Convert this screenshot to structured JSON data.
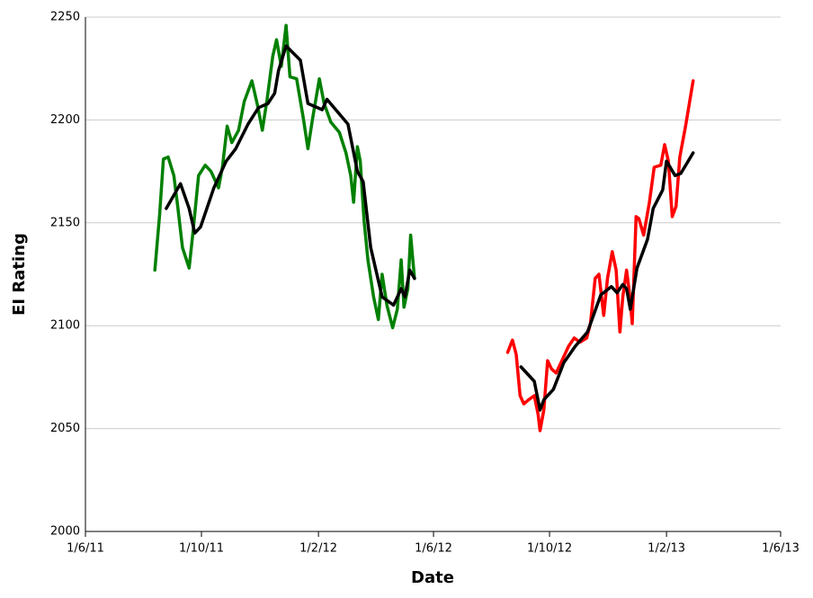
{
  "chart_data": {
    "type": "line",
    "x_label": "Date",
    "y_label": "EI Rating",
    "xlim": [
      "2011-06-01",
      "2013-06-01"
    ],
    "xticks": [
      {
        "value": "2011-06-01",
        "label": "1/6/11"
      },
      {
        "value": "2011-10-01",
        "label": "1/10/11"
      },
      {
        "value": "2012-02-01",
        "label": "1/2/12"
      },
      {
        "value": "2012-06-01",
        "label": "1/6/12"
      },
      {
        "value": "2012-10-01",
        "label": "1/10/12"
      },
      {
        "value": "2013-02-01",
        "label": "1/2/13"
      },
      {
        "value": "2013-06-01",
        "label": "1/6/13"
      }
    ],
    "ylim": [
      2000,
      2250
    ],
    "yticks": [
      2000,
      2050,
      2100,
      2150,
      2200,
      2250
    ],
    "grid": true,
    "series": [
      {
        "color": "#008000",
        "x": [
          "2011-08-13",
          "2011-08-18",
          "2011-08-22",
          "2011-08-27",
          "2011-09-02",
          "2011-09-06",
          "2011-09-11",
          "2011-09-18",
          "2011-09-22",
          "2011-09-28",
          "2011-10-05",
          "2011-10-11",
          "2011-10-19",
          "2011-10-23",
          "2011-10-28",
          "2011-11-02",
          "2011-11-09",
          "2011-11-15",
          "2011-11-23",
          "2011-11-29",
          "2011-12-04",
          "2011-12-09",
          "2011-12-15",
          "2011-12-19",
          "2011-12-24",
          "2011-12-29",
          "2012-01-02",
          "2012-01-09",
          "2012-01-16",
          "2012-01-21",
          "2012-01-26",
          "2012-02-02",
          "2012-02-07",
          "2012-02-14",
          "2012-02-23",
          "2012-03-01",
          "2012-03-06",
          "2012-03-09",
          "2012-03-13",
          "2012-03-16",
          "2012-03-20",
          "2012-03-24",
          "2012-03-30",
          "2012-04-04",
          "2012-04-08",
          "2012-04-13",
          "2012-04-19",
          "2012-04-24",
          "2012-04-28",
          "2012-05-01",
          "2012-05-05",
          "2012-05-08",
          "2012-05-12"
        ],
        "values": [
          2127,
          2154,
          2181,
          2182,
          2173,
          2158,
          2138,
          2128,
          2145,
          2173,
          2178,
          2175,
          2167,
          2177,
          2197,
          2189,
          2195,
          2209,
          2219,
          2207,
          2195,
          2210,
          2231,
          2239,
          2226,
          2246,
          2221,
          2220,
          2201,
          2186,
          2201,
          2220,
          2208,
          2199,
          2194,
          2184,
          2173,
          2160,
          2187,
          2180,
          2151,
          2132,
          2114,
          2103,
          2125,
          2110,
          2099,
          2108,
          2132,
          2109,
          2118,
          2144,
          2123
        ]
      },
      {
        "color": "#000000",
        "x": [
          "2011-08-25",
          "2011-09-09",
          "2011-09-18",
          "2011-09-24",
          "2011-09-30",
          "2011-10-14",
          "2011-10-27",
          "2011-11-06",
          "2011-11-19",
          "2011-11-30",
          "2011-12-10",
          "2011-12-17",
          "2011-12-21",
          "2011-12-29",
          "2012-01-13",
          "2012-01-21",
          "2012-02-05",
          "2012-02-10",
          "2012-03-03",
          "2012-03-13",
          "2012-03-19",
          "2012-03-27",
          "2012-04-08",
          "2012-04-20",
          "2012-04-28",
          "2012-05-02",
          "2012-05-07",
          "2012-05-12"
        ],
        "values": [
          2157,
          2169,
          2157,
          2145,
          2148,
          2167,
          2180,
          2186,
          2198,
          2206,
          2208,
          2213,
          2224,
          2236,
          2229,
          2208,
          2205,
          2210,
          2198,
          2175,
          2170,
          2138,
          2114,
          2110,
          2118,
          2114,
          2127,
          2123
        ]
      },
      {
        "color": "#ff0000",
        "x": [
          "2012-08-18",
          "2012-08-23",
          "2012-08-27",
          "2012-08-31",
          "2012-09-04",
          "2012-09-09",
          "2012-09-15",
          "2012-09-19",
          "2012-09-21",
          "2012-09-25",
          "2012-09-29",
          "2012-10-03",
          "2012-10-08",
          "2012-10-14",
          "2012-10-21",
          "2012-10-27",
          "2012-11-02",
          "2012-11-09",
          "2012-11-13",
          "2012-11-18",
          "2012-11-22",
          "2012-11-27",
          "2012-12-01",
          "2012-12-06",
          "2012-12-10",
          "2012-12-14",
          "2012-12-17",
          "2012-12-21",
          "2012-12-24",
          "2012-12-27",
          "2012-12-31",
          "2013-01-03",
          "2013-01-08",
          "2013-01-14",
          "2013-01-19",
          "2013-01-26",
          "2013-01-30",
          "2013-02-03",
          "2013-02-07",
          "2013-02-11",
          "2013-02-15",
          "2013-02-21",
          "2013-02-25",
          "2013-03-01"
        ],
        "values": [
          2087,
          2093,
          2086,
          2066,
          2062,
          2064,
          2066,
          2057,
          2049,
          2059,
          2083,
          2079,
          2077,
          2083,
          2090,
          2094,
          2092,
          2094,
          2101,
          2123,
          2125,
          2105,
          2123,
          2136,
          2127,
          2097,
          2114,
          2127,
          2116,
          2101,
          2153,
          2152,
          2144,
          2160,
          2177,
          2178,
          2188,
          2180,
          2153,
          2158,
          2182,
          2197,
          2208,
          2219
        ]
      },
      {
        "color": "#000000",
        "x": [
          "2012-09-01",
          "2012-09-15",
          "2012-09-21",
          "2012-09-25",
          "2012-10-05",
          "2012-10-16",
          "2012-10-28",
          "2012-11-10",
          "2012-11-24",
          "2012-12-05",
          "2012-12-11",
          "2012-12-17",
          "2012-12-21",
          "2012-12-25",
          "2013-01-01",
          "2013-01-12",
          "2013-01-18",
          "2013-01-28",
          "2013-02-01",
          "2013-02-10",
          "2013-02-16",
          "2013-03-01"
        ],
        "values": [
          2080,
          2073,
          2059,
          2064,
          2069,
          2082,
          2090,
          2097,
          2115,
          2119,
          2116,
          2120,
          2118,
          2108,
          2128,
          2142,
          2157,
          2166,
          2180,
          2173,
          2174,
          2184
        ]
      }
    ]
  }
}
